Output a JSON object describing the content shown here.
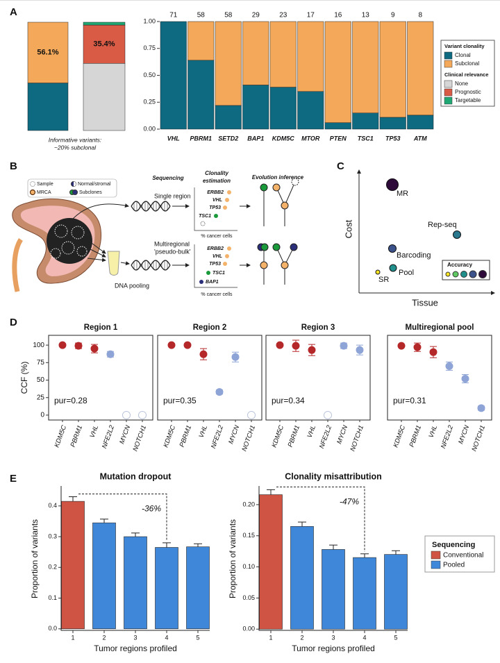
{
  "panel_labels": [
    "A",
    "B",
    "C",
    "D",
    "E"
  ],
  "panel_a_caption": [
    "Informative variants:",
    "~20% subclonal"
  ],
  "chart_data": [
    {
      "type": "stacked_bar",
      "categories": [
        null
      ],
      "ylim": [
        0,
        100
      ],
      "series": [
        {
          "color": "#0e6a80",
          "values": [
            43.9
          ]
        },
        {
          "color": "#f4a95a",
          "values": [
            56.1
          ],
          "value_labels": [
            "56.1%"
          ]
        }
      ]
    },
    {
      "type": "stacked_bar",
      "categories": [
        null
      ],
      "ylim": [
        0,
        100
      ],
      "legend_title": "Clinical relevance",
      "series": [
        {
          "name": "None",
          "color": "#d6d6d6",
          "values": [
            62
          ]
        },
        {
          "name": "Prognostic",
          "color": "#d95a45",
          "values": [
            35.4
          ],
          "value_labels": [
            "35.4%"
          ]
        },
        {
          "name": "Targetable",
          "color": "#1fa774",
          "values": [
            2.6
          ]
        }
      ]
    },
    {
      "type": "stacked_bar",
      "legend_title": "Variant clonality",
      "categories": [
        "VHL",
        "PBRM1",
        "SETD2",
        "BAP1",
        "KDM5C",
        "MTOR",
        "PTEN",
        "TSC1",
        "TP53",
        "ATM"
      ],
      "category_colors": [
        "#111111",
        "#c0504d",
        "#111111",
        "#c0504d",
        "#111111",
        "#1fa774",
        "#1fa774",
        "#1fa774",
        "#c0504d",
        "#111111"
      ],
      "top_labels": [
        71,
        58,
        58,
        29,
        23,
        17,
        16,
        13,
        9,
        8
      ],
      "series": [
        {
          "name": "Clonal",
          "color": "#0e6a80",
          "values": [
            1,
            0.64,
            0.22,
            0.41,
            0.39,
            0.35,
            0.06,
            0.15,
            0.11,
            0.13
          ]
        },
        {
          "name": "Subclonal",
          "color": "#f4a95a",
          "values": [
            0,
            0.36,
            0.78,
            0.59,
            0.61,
            0.65,
            0.94,
            0.85,
            0.89,
            0.87
          ]
        }
      ],
      "ylim": [
        0,
        1
      ],
      "yticks": [
        {
          "value": 0,
          "label": "0.00"
        },
        0.25,
        {
          "value": 0.5,
          "label": "0.50"
        },
        0.75,
        {
          "value": 1,
          "label": "1.00"
        }
      ]
    },
    {
      "type": "dot",
      "title": "Region 1",
      "ylabel": "CCF (%)",
      "categories": [
        "KDM5C",
        "PBRM1",
        "VHL",
        "NFE2L2",
        "MYCN",
        "NOTCH1"
      ],
      "values": [
        100,
        99,
        95,
        87,
        0,
        0
      ],
      "errors": [
        2,
        4,
        6,
        4,
        null,
        null
      ],
      "point_colors": [
        "#b5282a",
        "#b5282a",
        "#b5282a",
        "#8ea4d6",
        "#b9c3dc",
        "#b9c3dc"
      ],
      "open": [
        false,
        false,
        false,
        false,
        true,
        true
      ],
      "annotation": "pur=0.28",
      "ylim": [
        -7,
        114
      ],
      "yticks": [
        0,
        25,
        50,
        75,
        100
      ]
    },
    {
      "type": "dot",
      "title": "Region 2",
      "categories": [
        "KDM5C",
        "PBRM1",
        "VHL",
        "NFE2L2",
        "MYCN",
        "NOTCH1"
      ],
      "values": [
        100,
        100,
        87,
        33,
        83,
        0
      ],
      "errors": [
        2,
        2,
        8,
        3,
        7,
        null
      ],
      "point_colors": [
        "#b5282a",
        "#b5282a",
        "#b5282a",
        "#8ea4d6",
        "#8ea4d6",
        "#b9c3dc"
      ],
      "open": [
        false,
        false,
        false,
        false,
        false,
        true
      ],
      "annotation": "pur=0.35",
      "ylim": [
        -7,
        114
      ]
    },
    {
      "type": "dot",
      "title": "Region 3",
      "categories": [
        "KDM5C",
        "PBRM1",
        "VHL",
        "NFE2L2",
        "MYCN",
        "NOTCH1"
      ],
      "values": [
        100,
        99,
        93,
        0,
        99,
        93
      ],
      "errors": [
        2,
        8,
        8,
        null,
        4,
        7
      ],
      "point_colors": [
        "#b5282a",
        "#b5282a",
        "#b5282a",
        "#b9c3dc",
        "#8ea4d6",
        "#8ea4d6"
      ],
      "open": [
        false,
        false,
        false,
        true,
        false,
        false
      ],
      "annotation": "pur=0.34",
      "ylim": [
        -7,
        114
      ]
    },
    {
      "type": "dot",
      "title": "Multiregional pool",
      "categories": [
        "KDM5C",
        "PBRM1",
        "VHL",
        "NFE2L2",
        "MYCN",
        "NOTCH1"
      ],
      "values": [
        99,
        97,
        90,
        70,
        52,
        10
      ],
      "errors": [
        2,
        6,
        8,
        6,
        6,
        3
      ],
      "point_colors": [
        "#b5282a",
        "#b5282a",
        "#b5282a",
        "#8ea4d6",
        "#8ea4d6",
        "#8ea4d6"
      ],
      "open": [
        false,
        false,
        false,
        false,
        false,
        false
      ],
      "annotation": "pur=0.31",
      "ylim": [
        -7,
        114
      ]
    },
    {
      "type": "bar",
      "title": "Mutation dropout",
      "legend_title": "Sequencing",
      "categories": [
        1,
        2,
        3,
        4,
        5
      ],
      "series": [
        {
          "name": "Conventional",
          "color": "#cf5443",
          "values": [
            0.415,
            null,
            null,
            null,
            null
          ],
          "errors": [
            0.015,
            null,
            null,
            null,
            null
          ]
        },
        {
          "name": "Pooled",
          "color": "#3f87d9",
          "values": [
            null,
            0.345,
            0.3,
            0.265,
            0.267
          ],
          "errors": [
            null,
            0.012,
            0.012,
            0.015,
            0.01
          ]
        }
      ],
      "ylim": [
        -0.005,
        0.465
      ],
      "yticks": [
        {
          "value": 0,
          "label": "0.0"
        },
        0.1,
        0.2,
        0.3,
        0.4
      ],
      "xlabel": "Tumor regions profiled",
      "ylabel": "Proportion of variants",
      "annotation": "-36%"
    },
    {
      "type": "bar",
      "title": "Clonality misattribution",
      "categories": [
        1,
        2,
        3,
        4,
        5
      ],
      "series": [
        {
          "color": "#cf5443",
          "values": [
            0.216,
            null,
            null,
            null,
            null
          ],
          "errors": [
            0.008,
            null,
            null,
            null,
            null
          ]
        },
        {
          "color": "#3f87d9",
          "values": [
            null,
            0.165,
            0.128,
            0.115,
            0.12
          ],
          "errors": [
            null,
            0.007,
            0.007,
            0.006,
            0.006
          ]
        }
      ],
      "ylim": [
        -0.002,
        0.23
      ],
      "yticks": [
        {
          "value": 0,
          "label": "0.00"
        },
        0.05,
        {
          "value": 0.1,
          "label": "0.10"
        },
        0.15,
        {
          "value": 0.2,
          "label": "0.20"
        }
      ],
      "xlabel": "Tumor regions profiled",
      "ylabel": "Proportion of variants",
      "annotation": "-47%"
    }
  ],
  "panel_b": {
    "legend": [
      "Sample",
      "Normal/stromal",
      "MRCA",
      "Subclones"
    ],
    "headers": {
      "sequencing": "Sequencing",
      "clonality": [
        "Clonality",
        "estimation"
      ],
      "evolution": "Evolution inference"
    },
    "rows": [
      {
        "label": [
          "Single region"
        ],
        "genes": [
          "ERBB2",
          "VHL",
          "TP53",
          "TSC1"
        ],
        "axis_label": "% cancer cells"
      },
      {
        "label": [
          "Multiregional",
          "'pseudo-bulk'"
        ],
        "genes": [
          "ERBB2",
          "VHL",
          "TP53",
          "TSC1",
          "BAP1"
        ],
        "axis_label": "% cancer cells"
      }
    ],
    "pooling": "DNA pooling"
  },
  "panel_c": {
    "x_label": "Tissue",
    "y_label": "Cost",
    "points": [
      "MR",
      "Rep-seq",
      "Barcoding",
      "Pool",
      "SR"
    ],
    "legend_title": "Accuracy"
  }
}
